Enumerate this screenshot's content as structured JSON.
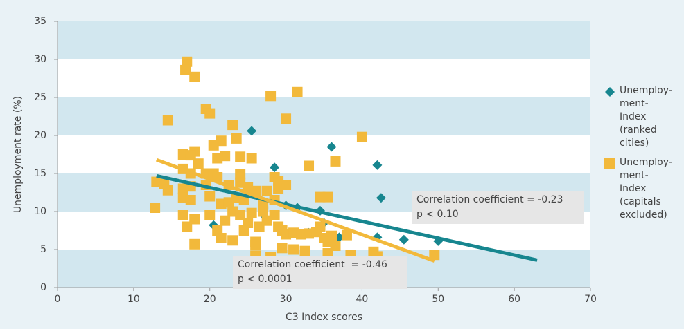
{
  "chart_data": {
    "type": "scatter",
    "x_label": "C3 Index scores",
    "y_label": "Unemployment rate (%)",
    "xlim": [
      0,
      70
    ],
    "xticks": [
      0,
      10,
      20,
      30,
      40,
      50,
      60,
      70
    ],
    "ylim": [
      0,
      35
    ],
    "yticks": [
      0,
      5,
      10,
      15,
      20,
      25,
      30,
      35
    ],
    "bands": true,
    "legend": "right",
    "series": [
      {
        "name": "Unemploy-ment-Index (ranked cities)",
        "color": "#17868f",
        "marker": "diamond",
        "x": [
          25.5,
          36,
          42,
          28.5,
          42.5,
          20.5,
          30,
          31.5,
          34.5,
          27,
          35,
          42,
          45.5,
          50,
          37,
          33
        ],
        "y": [
          20.6,
          18.5,
          16.1,
          15.8,
          11.8,
          8.2,
          10.8,
          10.5,
          10.1,
          9.6,
          8.5,
          6.6,
          6.3,
          6.1,
          6.6,
          7.2
        ],
        "trend": {
          "x": [
            13,
            63
          ],
          "y": [
            14.7,
            3.6
          ]
        }
      },
      {
        "name": "Unemploy-ment-Index (capitals excluded)",
        "color": "#f2b93b",
        "marker": "square",
        "x": [
          17,
          16.8,
          18,
          31.5,
          28,
          19.5,
          20,
          14.5,
          30,
          23,
          40,
          23.5,
          21.5,
          18,
          16.5,
          17.5,
          20.5,
          22,
          21,
          24,
          25.5,
          36.5,
          18.5,
          16.5,
          17.5,
          19.5,
          20.5,
          21,
          24,
          28.5,
          29,
          33,
          13,
          14,
          14.5,
          16.5,
          17.5,
          19.5,
          22.5,
          24,
          25,
          26,
          27.5,
          29,
          30,
          34.5,
          35.5,
          12.8,
          16.5,
          17.5,
          20,
          21.5,
          22.5,
          23.5,
          24.5,
          27,
          28.5,
          16.5,
          17,
          18,
          20,
          21,
          21.5,
          22,
          23,
          24,
          24.5,
          25,
          25.5,
          26,
          26.5,
          27,
          27.5,
          28.5,
          29,
          29.5,
          30,
          31,
          32,
          33,
          34,
          34.5,
          35,
          35.5,
          36,
          36.5,
          38,
          18,
          23,
          26,
          29.5,
          31,
          32.5,
          35.5,
          38.5,
          41.5,
          42,
          49.5,
          28,
          26
        ],
        "y": [
          29.7,
          28.6,
          27.7,
          25.7,
          25.2,
          23.5,
          22.9,
          22,
          22.2,
          21.4,
          19.8,
          19.6,
          19.3,
          17.9,
          17.5,
          17.4,
          18.7,
          17.3,
          17,
          17.2,
          17,
          16.6,
          16.3,
          15.6,
          15,
          15,
          15,
          14.5,
          14.9,
          14.5,
          14,
          16,
          13.9,
          13.6,
          12.8,
          13,
          13.3,
          13.5,
          13.5,
          13.8,
          13.2,
          12.7,
          12.7,
          13,
          13.5,
          11.9,
          11.9,
          10.5,
          11.8,
          11.5,
          12,
          11,
          11.2,
          11.8,
          11.5,
          11,
          11.5,
          9.5,
          8,
          9,
          9.5,
          7.5,
          6.5,
          8.8,
          10,
          9.5,
          7.5,
          8.5,
          9.8,
          6,
          8,
          10,
          8.8,
          9.5,
          8,
          7.5,
          7,
          7.2,
          7,
          7.1,
          7.3,
          8,
          6.5,
          6,
          6.8,
          5.5,
          6.9,
          5.7,
          6.2,
          5.6,
          5.2,
          5,
          4.8,
          4.5,
          4.3,
          4.7,
          4.1,
          4.3,
          4,
          4.2
        ],
        "trend": {
          "x": [
            13,
            49.5
          ],
          "y": [
            16.8,
            3.5
          ]
        }
      }
    ],
    "annotations": [
      {
        "lines": [
          "Correlation coefficient = -0.23",
          "p < 0.10"
        ]
      },
      {
        "lines": [
          "Correlation coefficient  = -0.46",
          "p < 0.0001"
        ]
      }
    ]
  }
}
